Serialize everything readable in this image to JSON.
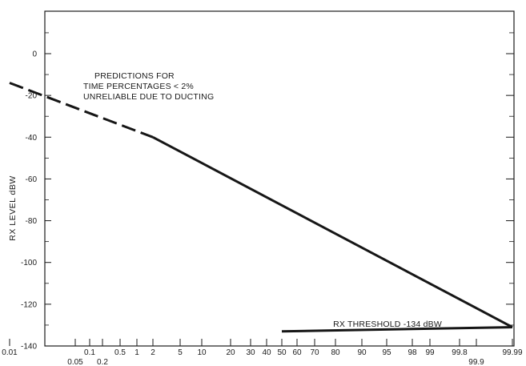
{
  "chart_data": {
    "type": "line",
    "title": "",
    "ylabel": "RX LEVEL  dBW",
    "xlabel": "",
    "x_scale": "probability",
    "ylim": [
      -140,
      20
    ],
    "yticks": [
      0,
      -20,
      -40,
      -60,
      -80,
      -100,
      -120,
      -140
    ],
    "xticks": [
      {
        "label": "0.01",
        "value": 0.01
      },
      {
        "label": "0.05",
        "value": 0.05
      },
      {
        "label": "0.1",
        "value": 0.1
      },
      {
        "label": "0.2",
        "value": 0.2
      },
      {
        "label": "0.5",
        "value": 0.5
      },
      {
        "label": "1",
        "value": 1
      },
      {
        "label": "2",
        "value": 2
      },
      {
        "label": "5",
        "value": 5
      },
      {
        "label": "10",
        "value": 10
      },
      {
        "label": "20",
        "value": 20
      },
      {
        "label": "30",
        "value": 30
      },
      {
        "label": "40",
        "value": 40
      },
      {
        "label": "50",
        "value": 50
      },
      {
        "label": "60",
        "value": 60
      },
      {
        "label": "70",
        "value": 70
      },
      {
        "label": "80",
        "value": 80
      },
      {
        "label": "90",
        "value": 90
      },
      {
        "label": "95",
        "value": 95
      },
      {
        "label": "98",
        "value": 98
      },
      {
        "label": "99",
        "value": 99
      },
      {
        "label": "99.8",
        "value": 99.8
      },
      {
        "label": "99.9",
        "value": 99.9
      },
      {
        "label": "99.99",
        "value": 99.99
      }
    ],
    "series": [
      {
        "style": "dashed",
        "points": [
          {
            "x": 0.01,
            "y": -14
          },
          {
            "x": 2,
            "y": -40
          }
        ]
      },
      {
        "style": "solid",
        "points": [
          {
            "x": 2,
            "y": -40
          },
          {
            "x": 99.99,
            "y": -131
          }
        ]
      },
      {
        "style": "solid",
        "points": [
          {
            "x": 50,
            "y": -133
          },
          {
            "x": 99.99,
            "y": -131
          }
        ]
      }
    ],
    "annotations": [
      {
        "text": [
          "PREDICTIONS FOR",
          "TIME PERCENTAGES < 2%",
          "UNRELIABLE DUE TO DUCTING"
        ]
      },
      {
        "text": [
          "RX THRESHOLD -134 dBW"
        ]
      }
    ],
    "grid": false
  }
}
